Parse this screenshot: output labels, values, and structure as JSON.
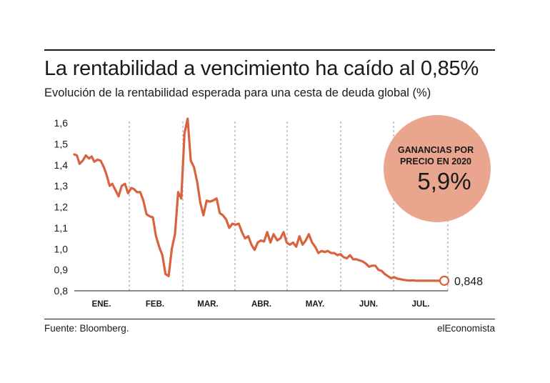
{
  "header": {
    "title": "La rentabilidad a vencimiento ha caído al 0,85%",
    "subtitle": "Evolución de la rentabilidad esperada para una cesta de deuda global (%)"
  },
  "footer": {
    "source": "Fuente: Bloomberg.",
    "brand": "elEconomista"
  },
  "callout": {
    "label_line1": "GANANCIAS POR",
    "label_line2": "PRECIO EN 2020",
    "value": "5,9%",
    "color": "#eaa58e"
  },
  "chart_data": {
    "type": "line",
    "title": "La rentabilidad a vencimiento ha caído al 0,85%",
    "ylabel": "",
    "xlabel": "",
    "ylim": [
      0.8,
      1.6
    ],
    "xlim": [
      0,
      7.2
    ],
    "yticks": [
      0.8,
      0.9,
      1.0,
      1.1,
      1.2,
      1.3,
      1.4,
      1.5,
      1.6
    ],
    "ytick_labels": [
      "0,8",
      "0,9",
      "1,0",
      "1,1",
      "1,2",
      "1,3",
      "1,4",
      "1,5",
      "1,6"
    ],
    "months": [
      "ENE.",
      "FEB.",
      "MAR.",
      "ABR.",
      "MAY.",
      "JUN.",
      "JUL."
    ],
    "grid": "vertical-dashed",
    "line_color": "#d9623f",
    "last_value": 0.848,
    "last_value_label": "0,848",
    "series": [
      {
        "x": [
          0.0,
          0.05,
          0.1,
          0.16,
          0.22,
          0.28,
          0.33,
          0.38,
          0.44,
          0.5,
          0.56,
          0.61,
          0.67,
          0.72,
          0.78,
          0.84,
          0.9,
          0.96,
          1.02,
          1.08,
          1.13,
          1.19,
          1.25,
          1.31,
          1.37,
          1.43,
          1.49,
          1.55,
          1.61,
          1.67,
          1.73,
          1.79,
          1.85,
          1.91,
          1.97,
          2.03,
          2.09,
          2.15,
          2.21,
          2.27,
          2.33,
          2.39,
          2.45,
          2.51,
          2.57,
          2.63,
          2.7,
          2.76,
          2.82,
          2.88,
          2.94,
          3.0,
          3.06,
          3.12,
          3.18,
          3.24,
          3.3,
          3.36,
          3.42,
          3.48,
          3.54,
          3.6,
          3.66,
          3.72,
          3.78,
          3.85,
          3.91,
          3.97,
          4.03,
          4.09,
          4.15,
          4.21,
          4.27,
          4.33,
          4.39,
          4.45,
          4.51,
          4.57,
          4.63,
          4.69,
          4.75,
          4.81,
          4.87,
          4.93,
          4.99,
          5.05,
          5.11,
          5.17,
          5.23,
          5.29,
          5.35,
          5.41,
          5.47,
          5.53,
          5.59,
          5.65,
          5.71,
          5.77,
          5.83,
          5.89,
          5.95,
          6.01,
          6.07,
          6.13,
          6.19,
          6.25,
          6.31,
          6.37,
          6.43,
          6.49,
          6.55,
          6.61,
          6.67,
          6.73,
          6.79,
          6.85,
          6.91
        ],
        "values": [
          1.45,
          1.445,
          1.405,
          1.42,
          1.445,
          1.43,
          1.44,
          1.415,
          1.425,
          1.42,
          1.39,
          1.355,
          1.3,
          1.31,
          1.28,
          1.25,
          1.3,
          1.31,
          1.265,
          1.29,
          1.285,
          1.27,
          1.27,
          1.23,
          1.165,
          1.155,
          1.15,
          1.06,
          1.01,
          0.97,
          0.88,
          0.87,
          1.0,
          1.07,
          1.27,
          1.24,
          1.55,
          1.62,
          1.42,
          1.39,
          1.32,
          1.22,
          1.16,
          1.23,
          1.225,
          1.23,
          1.24,
          1.17,
          1.16,
          1.14,
          1.1,
          1.12,
          1.115,
          1.12,
          1.08,
          1.05,
          1.06,
          1.02,
          0.995,
          1.03,
          1.04,
          1.035,
          1.08,
          1.03,
          1.07,
          1.04,
          1.05,
          1.08,
          1.03,
          1.02,
          1.03,
          1.01,
          1.06,
          1.02,
          1.04,
          1.07,
          1.03,
          1.01,
          0.98,
          0.99,
          0.985,
          0.99,
          0.98,
          0.98,
          0.97,
          0.975,
          0.96,
          0.955,
          0.97,
          0.95,
          0.95,
          0.945,
          0.94,
          0.93,
          0.915,
          0.92,
          0.92,
          0.9,
          0.895,
          0.88,
          0.87,
          0.86,
          0.865,
          0.858,
          0.855,
          0.852,
          0.85,
          0.849,
          0.85,
          0.848,
          0.848,
          0.848,
          0.848,
          0.848,
          0.848,
          0.848,
          0.848
        ]
      }
    ]
  }
}
